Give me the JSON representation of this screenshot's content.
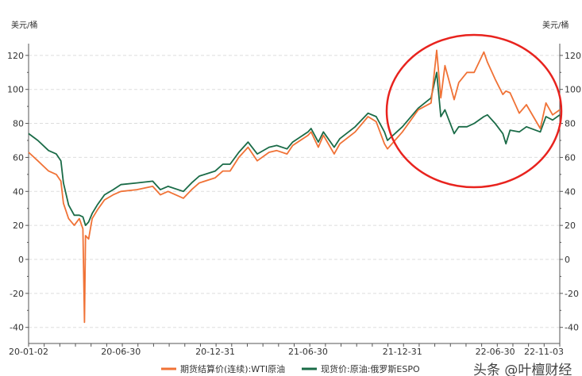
{
  "chart_data": {
    "type": "line",
    "title": "",
    "ylabel_left": "美元/桶",
    "ylabel_right": "美元/桶",
    "ylim": [
      -45,
      132
    ],
    "yticks": [
      -40,
      -20,
      0,
      20,
      40,
      60,
      80,
      100,
      120
    ],
    "xlim": [
      "2020-01-02",
      "2022-11-03"
    ],
    "xtick_labels": [
      "20-01-02",
      "20-06-30",
      "20-12-31",
      "21-06-30",
      "21-12-31",
      "22-06-30",
      "22-11-03"
    ],
    "xtick_dates": [
      "2020-01-02",
      "2020-06-30",
      "2020-12-31",
      "2021-06-30",
      "2021-12-31",
      "2022-06-30",
      "2022-11-03"
    ],
    "grid": "horizontal dashed",
    "legend_position": "bottom",
    "x": [
      "2020-01-02",
      "2020-01-20",
      "2020-02-10",
      "2020-02-25",
      "2020-03-05",
      "2020-03-10",
      "2020-03-20",
      "2020-03-31",
      "2020-04-10",
      "2020-04-17",
      "2020-04-20",
      "2020-04-22",
      "2020-04-28",
      "2020-05-05",
      "2020-05-15",
      "2020-05-29",
      "2020-06-15",
      "2020-06-30",
      "2020-07-31",
      "2020-08-31",
      "2020-09-15",
      "2020-09-30",
      "2020-10-30",
      "2020-11-15",
      "2020-11-30",
      "2020-12-31",
      "2021-01-15",
      "2021-01-29",
      "2021-02-15",
      "2021-03-05",
      "2021-03-23",
      "2021-04-15",
      "2021-04-30",
      "2021-05-20",
      "2021-05-31",
      "2021-06-30",
      "2021-07-06",
      "2021-07-20",
      "2021-07-30",
      "2021-08-20",
      "2021-08-31",
      "2021-09-30",
      "2021-10-25",
      "2021-11-10",
      "2021-11-26",
      "2021-12-02",
      "2021-12-31",
      "2022-01-31",
      "2022-02-25",
      "2022-03-08",
      "2022-03-16",
      "2022-03-24",
      "2022-04-11",
      "2022-04-20",
      "2022-05-06",
      "2022-05-20",
      "2022-06-08",
      "2022-06-15",
      "2022-06-30",
      "2022-07-15",
      "2022-07-21",
      "2022-07-29",
      "2022-08-16",
      "2022-08-30",
      "2022-09-26",
      "2022-10-07",
      "2022-10-20",
      "2022-11-03"
    ],
    "series": [
      {
        "name": "期货结算价(连续):WTI原油",
        "color": "#f07236",
        "values": [
          63,
          58,
          52,
          50,
          46,
          33,
          24,
          20,
          24,
          18,
          -37,
          14,
          12,
          24,
          29,
          35,
          38,
          40,
          41,
          43,
          38,
          40,
          36,
          41,
          45,
          48,
          52,
          52,
          60,
          66,
          58,
          63,
          64,
          62,
          67,
          73,
          75,
          66,
          73,
          62,
          68,
          75,
          84,
          81,
          68,
          65,
          75,
          88,
          92,
          123,
          95,
          114,
          94,
          104,
          110,
          110,
          122,
          116,
          106,
          97,
          99,
          98,
          86,
          91,
          77,
          92,
          85,
          88
        ]
      },
      {
        "name": "现货价:原油:俄罗斯ESPO",
        "color": "#1a6b47",
        "values": [
          74,
          70,
          64,
          62,
          58,
          45,
          32,
          26,
          26,
          25,
          22,
          20,
          22,
          27,
          32,
          38,
          41,
          44,
          45,
          46,
          41,
          43,
          40,
          45,
          49,
          52,
          56,
          56,
          63,
          69,
          62,
          66,
          67,
          65,
          69,
          75,
          77,
          69,
          75,
          66,
          71,
          78,
          86,
          84,
          75,
          70,
          78,
          89,
          95,
          110,
          84,
          88,
          74,
          78,
          78,
          80,
          84,
          85,
          80,
          74,
          68,
          76,
          75,
          78,
          75,
          84,
          82,
          85
        ]
      }
    ],
    "annotation": {
      "shape": "ellipse",
      "color": "#e8231e"
    }
  },
  "watermark": "头条 @叶檀财经"
}
